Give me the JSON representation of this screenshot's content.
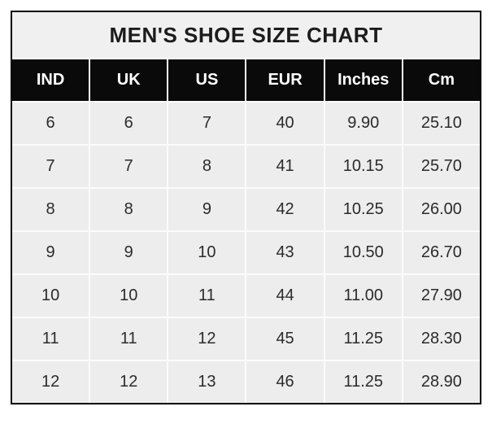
{
  "chart_data": {
    "type": "table",
    "title": "MEN'S SHOE SIZE CHART",
    "columns": [
      "IND",
      "UK",
      "US",
      "EUR",
      "Inches",
      "Cm"
    ],
    "rows": [
      [
        "6",
        "6",
        "7",
        "40",
        "9.90",
        "25.10"
      ],
      [
        "7",
        "7",
        "8",
        "41",
        "10.15",
        "25.70"
      ],
      [
        "8",
        "8",
        "9",
        "42",
        "10.25",
        "26.00"
      ],
      [
        "9",
        "9",
        "10",
        "43",
        "10.50",
        "26.70"
      ],
      [
        "10",
        "10",
        "11",
        "44",
        "11.00",
        "27.90"
      ],
      [
        "11",
        "11",
        "12",
        "45",
        "11.25",
        "28.30"
      ],
      [
        "12",
        "12",
        "13",
        "46",
        "11.25",
        "28.90"
      ]
    ]
  },
  "colors": {
    "border": "#000000",
    "title_bg": "#f0f0f0",
    "title_text": "#1c1c1c",
    "header_bg": "#0a0a0a",
    "header_text": "#ffffff",
    "cell_bg": "#ededed",
    "cell_text": "#2b2b2b",
    "gap": "#fbfbfb",
    "page_bg": "#ffffff"
  }
}
